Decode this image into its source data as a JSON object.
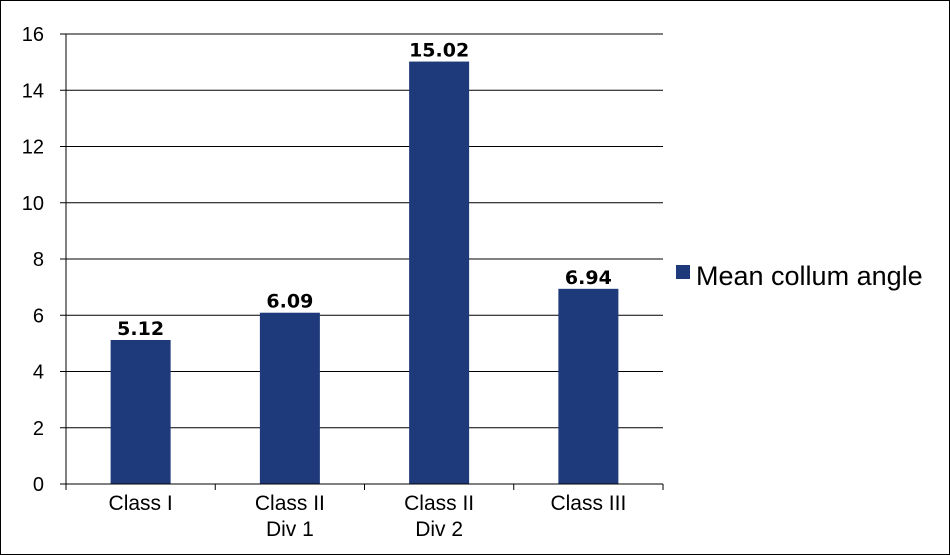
{
  "chart_data": {
    "type": "bar",
    "categories": [
      [
        "Class I"
      ],
      [
        "Class II",
        "Div 1"
      ],
      [
        "Class II",
        "Div 2"
      ],
      [
        "Class III"
      ]
    ],
    "series": [
      {
        "name": "Mean collum angle",
        "values": [
          5.12,
          6.09,
          15.02,
          6.94
        ],
        "color": "#1f3a7a"
      }
    ],
    "data_labels": [
      "5.12",
      "6.09",
      "15.02",
      "6.94"
    ],
    "y_ticks": [
      0,
      2,
      4,
      6,
      8,
      10,
      12,
      14,
      16
    ],
    "ylim": [
      0,
      16
    ],
    "grid": true,
    "legend_position": "right"
  }
}
